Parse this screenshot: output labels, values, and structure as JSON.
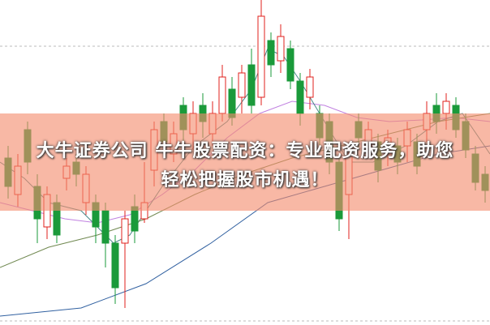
{
  "banner": {
    "lines": [
      "大牛证券公司 牛牛股票配资：专业配资服务，助您",
      "轻松把握股市机遇！"
    ]
  }
}
